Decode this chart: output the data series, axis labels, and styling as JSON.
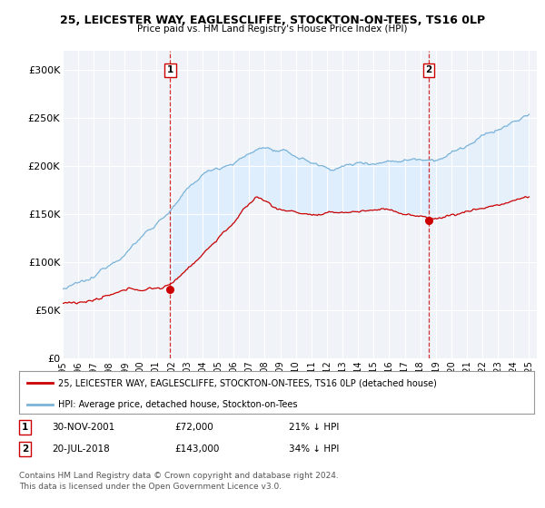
{
  "title": "25, LEICESTER WAY, EAGLESCLIFFE, STOCKTON-ON-TEES, TS16 0LP",
  "subtitle": "Price paid vs. HM Land Registry's House Price Index (HPI)",
  "xlim_start": 1995.0,
  "xlim_end": 2025.5,
  "ylim": [
    0,
    320000
  ],
  "yticks": [
    0,
    50000,
    100000,
    150000,
    200000,
    250000,
    300000
  ],
  "ytick_labels": [
    "£0",
    "£50K",
    "£100K",
    "£150K",
    "£200K",
    "£250K",
    "£300K"
  ],
  "sale1_x": 2001.92,
  "sale1_y": 72000,
  "sale1_label": "1",
  "sale1_date": "30-NOV-2001",
  "sale1_price": "£72,000",
  "sale1_hpi": "21% ↓ HPI",
  "sale2_x": 2018.55,
  "sale2_y": 143000,
  "sale2_label": "2",
  "sale2_date": "20-JUL-2018",
  "sale2_price": "£143,000",
  "sale2_hpi": "34% ↓ HPI",
  "hpi_color": "#7ab3d8",
  "hpi_fill_color": "#ddeeff",
  "price_color": "#cc0000",
  "vline_color": "#cc0000",
  "background_color": "#f0f4f8",
  "grid_color": "#ffffff",
  "legend_line1": "25, LEICESTER WAY, EAGLESCLIFFE, STOCKTON-ON-TEES, TS16 0LP (detached house)",
  "legend_line2": "HPI: Average price, detached house, Stockton-on-Tees",
  "footer1": "Contains HM Land Registry data © Crown copyright and database right 2024.",
  "footer2": "This data is licensed under the Open Government Licence v3.0."
}
